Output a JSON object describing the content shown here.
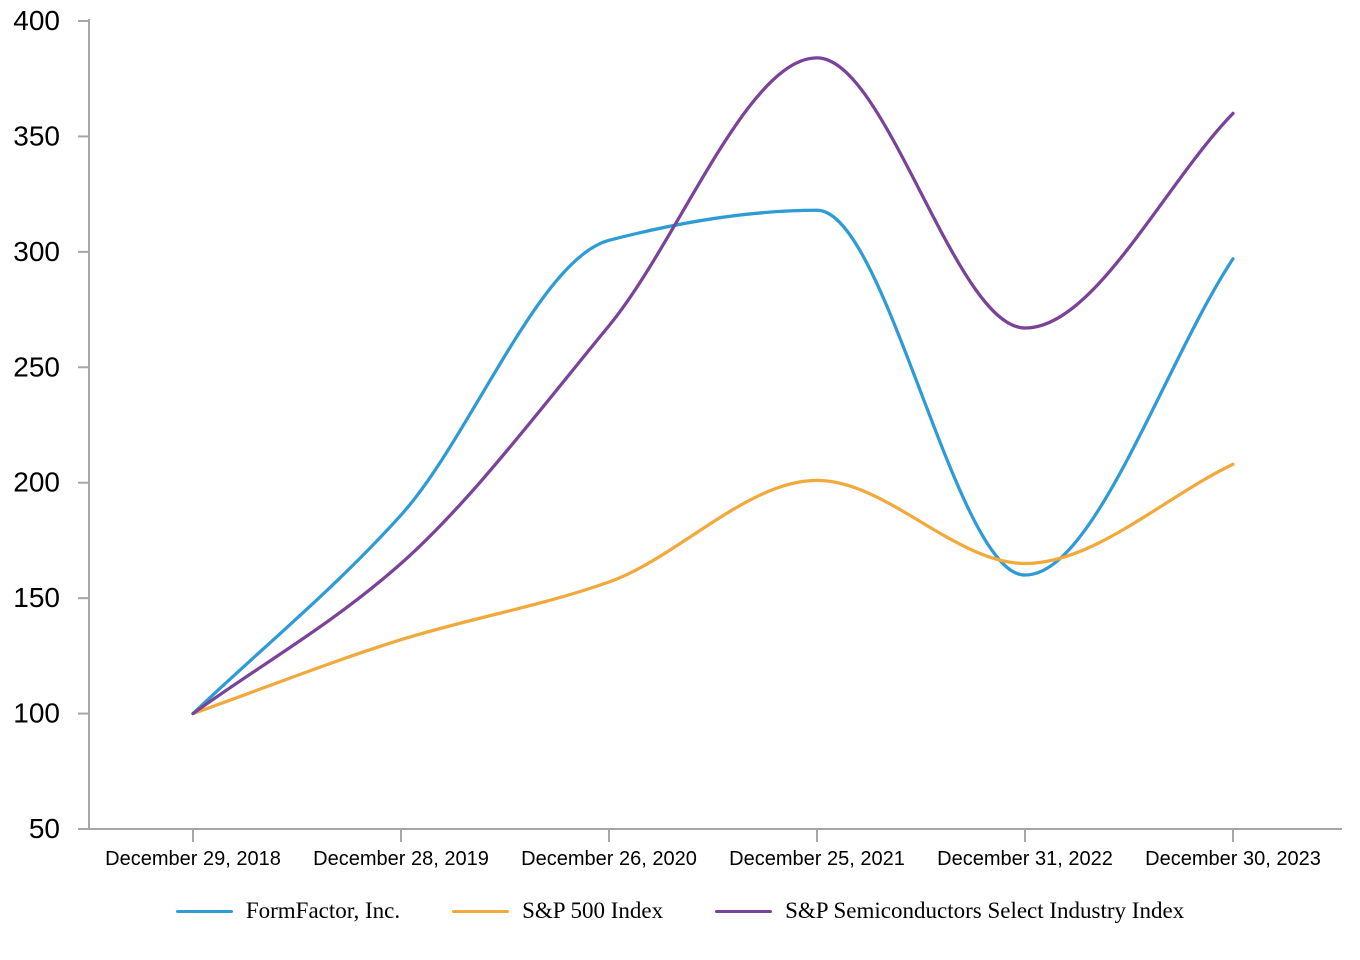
{
  "chart_data": {
    "type": "line",
    "smoothed": true,
    "title": "",
    "xlabel": "",
    "ylabel": "",
    "categories": [
      "December 29, 2018",
      "December 28, 2019",
      "December 26, 2020",
      "December 25, 2021",
      "December 31, 2022",
      "December 30, 2023"
    ],
    "series": [
      {
        "name": "FormFactor, Inc.",
        "color": "#2E9BD6",
        "values": [
          100,
          186,
          305,
          318,
          160,
          297
        ]
      },
      {
        "name": "S&P 500 Index",
        "color": "#F2A93B",
        "values": [
          100,
          132,
          157,
          201,
          165,
          208
        ]
      },
      {
        "name": "S&P Semiconductors Select Industry Index",
        "color": "#7A4399",
        "values": [
          100,
          165,
          268,
          384,
          267,
          360
        ]
      }
    ],
    "y_axis": {
      "min": 50,
      "max": 400,
      "step": 50
    },
    "grid": false,
    "legend_position": "bottom",
    "axis_color": "#A6A6A6",
    "text_color": "#000000",
    "background": "#FFFFFF"
  }
}
